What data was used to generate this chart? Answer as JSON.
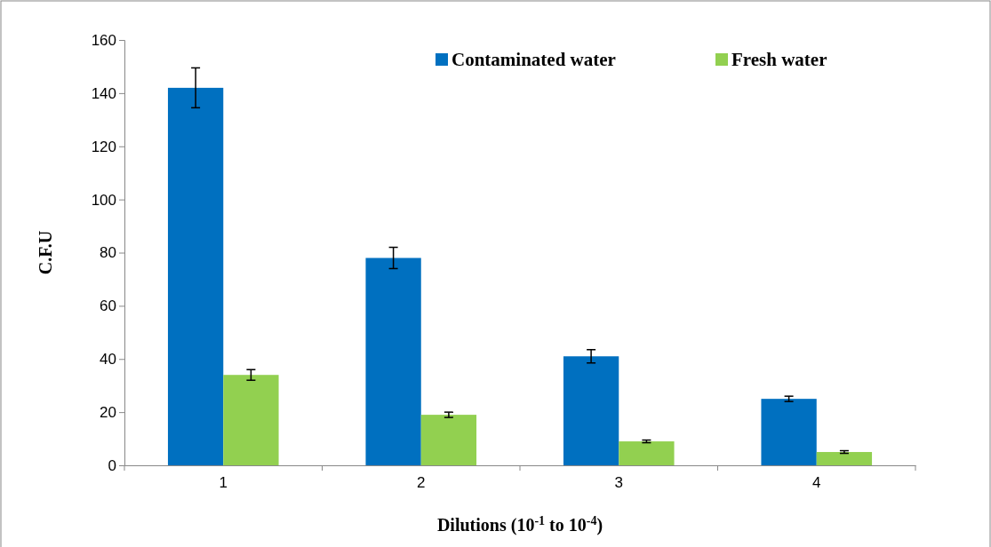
{
  "chart_data": {
    "type": "bar",
    "xlabel": "Dilutions (10$^{-1}$ to 10$^{-4}$)",
    "ylabel": "C.F.U",
    "categories": [
      "1",
      "2",
      "3",
      "4"
    ],
    "series": [
      {
        "name": "Contaminated water",
        "color": "#0070c0",
        "values": [
          142,
          78,
          41,
          25
        ],
        "errors": [
          7.5,
          4,
          2.5,
          1
        ]
      },
      {
        "name": "Fresh water",
        "color": "#92d050",
        "values": [
          34,
          19,
          9,
          5
        ],
        "errors": [
          2,
          1,
          0.5,
          0.5
        ]
      }
    ],
    "ylim": [
      0,
      160
    ],
    "yticks": [
      0,
      20,
      40,
      60,
      80,
      100,
      120,
      140,
      160
    ],
    "grid": false,
    "legend": "top right"
  }
}
